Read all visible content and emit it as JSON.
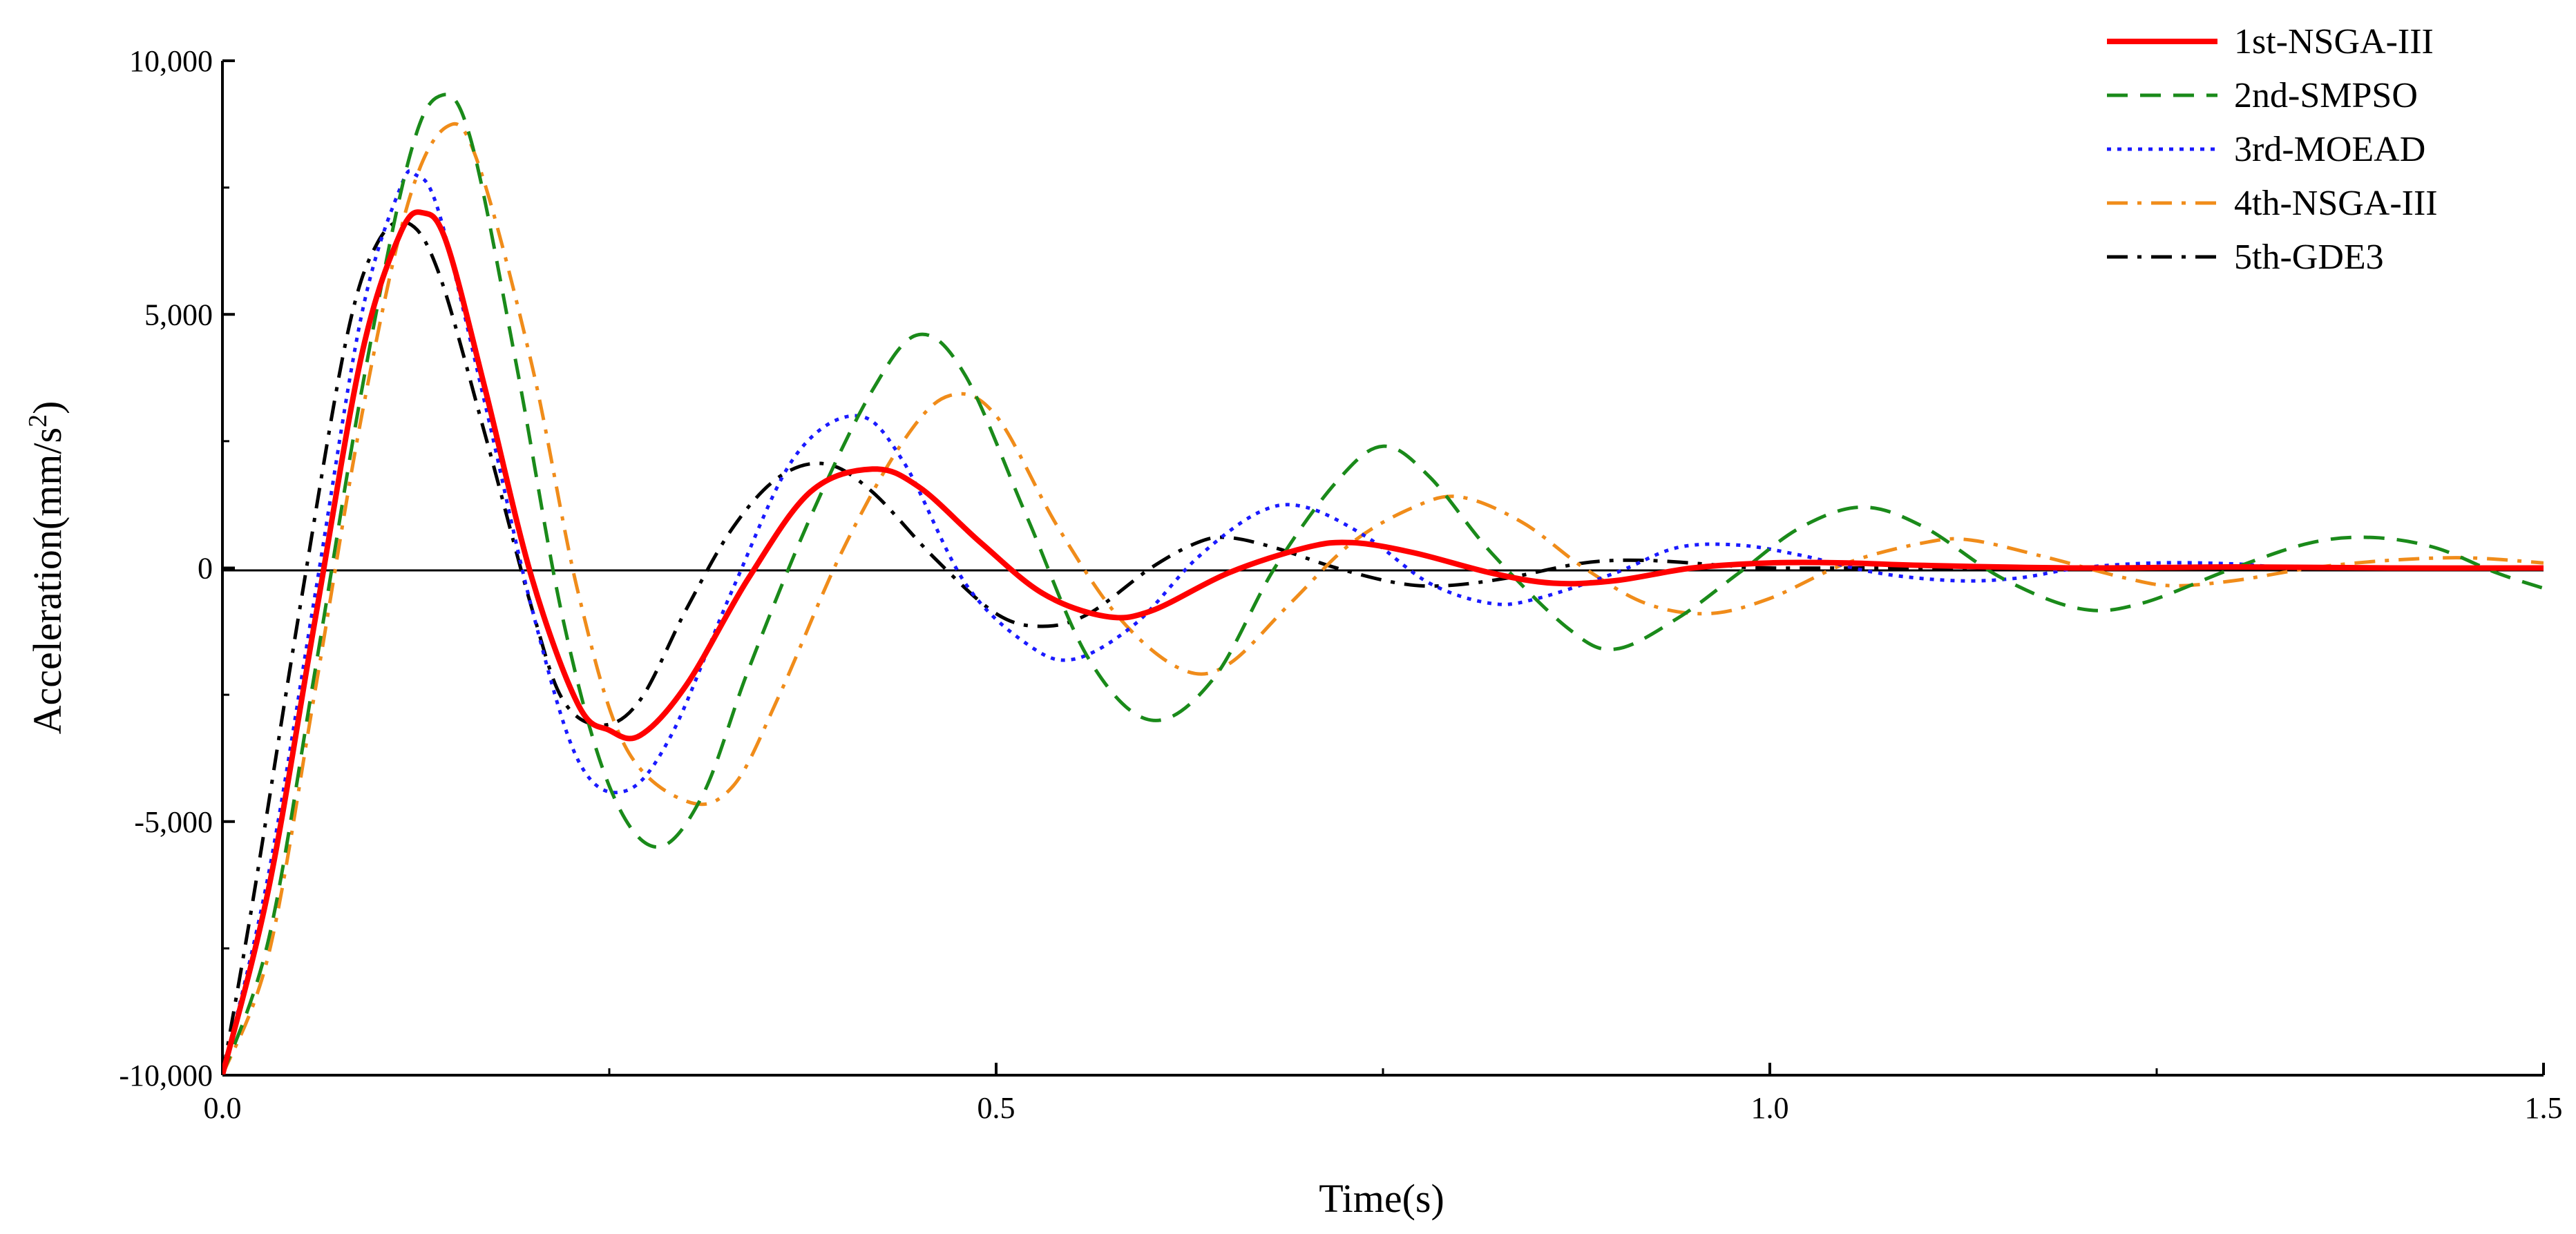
{
  "chart_data": {
    "type": "line",
    "title": "",
    "xlabel": "Time(s)",
    "ylabel": "Acceleration(mm/s",
    "ylabel_sup": "2",
    "ylabel_close": ")",
    "xlim": [
      0,
      1.5
    ],
    "ylim": [
      -10000,
      10000
    ],
    "x_ticks": [
      0.0,
      0.5,
      1.0,
      1.5
    ],
    "x_tick_labels": [
      "0.0",
      "0.5",
      "1.0",
      "1.5"
    ],
    "y_ticks": [
      -10000,
      -5000,
      0,
      5000,
      10000
    ],
    "y_tick_labels": [
      "-10,000",
      "-5,000",
      "0",
      "5,000",
      "10,000"
    ],
    "grid": false,
    "legend_position": "top-right",
    "series": [
      {
        "name": "1st-NSGA-III",
        "color": "#ff0000",
        "style": "solid",
        "points": [
          [
            0,
            -10000
          ],
          [
            0.03,
            -6300
          ],
          [
            0.06,
            -1000
          ],
          [
            0.09,
            4200
          ],
          [
            0.115,
            6600
          ],
          [
            0.13,
            7000
          ],
          [
            0.145,
            6400
          ],
          [
            0.17,
            3500
          ],
          [
            0.2,
            -200
          ],
          [
            0.23,
            -2700
          ],
          [
            0.25,
            -3200
          ],
          [
            0.27,
            -3300
          ],
          [
            0.3,
            -2300
          ],
          [
            0.34,
            -200
          ],
          [
            0.38,
            1500
          ],
          [
            0.42,
            1950
          ],
          [
            0.45,
            1600
          ],
          [
            0.49,
            500
          ],
          [
            0.53,
            -500
          ],
          [
            0.57,
            -950
          ],
          [
            0.6,
            -850
          ],
          [
            0.65,
            -100
          ],
          [
            0.7,
            400
          ],
          [
            0.73,
            500
          ],
          [
            0.77,
            300
          ],
          [
            0.82,
            -100
          ],
          [
            0.86,
            -300
          ],
          [
            0.9,
            -250
          ],
          [
            0.95,
            0
          ],
          [
            1.0,
            100
          ],
          [
            1.05,
            100
          ],
          [
            1.1,
            50
          ],
          [
            1.2,
            0
          ],
          [
            1.3,
            20
          ],
          [
            1.4,
            0
          ],
          [
            1.5,
            0
          ]
        ]
      },
      {
        "name": "2nd-SMPSO",
        "color": "#1a8a1a",
        "style": "dashed",
        "points": [
          [
            0,
            -10000
          ],
          [
            0.03,
            -7300
          ],
          [
            0.06,
            -2000
          ],
          [
            0.09,
            3500
          ],
          [
            0.12,
            8000
          ],
          [
            0.14,
            9300
          ],
          [
            0.16,
            8500
          ],
          [
            0.19,
            4000
          ],
          [
            0.22,
            -1000
          ],
          [
            0.25,
            -4300
          ],
          [
            0.28,
            -5500
          ],
          [
            0.31,
            -4500
          ],
          [
            0.34,
            -2000
          ],
          [
            0.38,
            1000
          ],
          [
            0.42,
            3500
          ],
          [
            0.45,
            4600
          ],
          [
            0.48,
            3800
          ],
          [
            0.52,
            1000
          ],
          [
            0.56,
            -1800
          ],
          [
            0.6,
            -3000
          ],
          [
            0.64,
            -2200
          ],
          [
            0.68,
            0
          ],
          [
            0.72,
            1700
          ],
          [
            0.75,
            2400
          ],
          [
            0.78,
            1800
          ],
          [
            0.82,
            300
          ],
          [
            0.87,
            -1200
          ],
          [
            0.9,
            -1600
          ],
          [
            0.94,
            -1000
          ],
          [
            0.98,
            -100
          ],
          [
            1.02,
            800
          ],
          [
            1.06,
            1200
          ],
          [
            1.1,
            800
          ],
          [
            1.15,
            -200
          ],
          [
            1.2,
            -800
          ],
          [
            1.24,
            -700
          ],
          [
            1.3,
            0
          ],
          [
            1.35,
            500
          ],
          [
            1.39,
            600
          ],
          [
            1.43,
            400
          ],
          [
            1.47,
            -100
          ],
          [
            1.5,
            -400
          ]
        ]
      },
      {
        "name": "3rd-MOEAD",
        "color": "#1a1aff",
        "style": "dotted",
        "points": [
          [
            0,
            -10000
          ],
          [
            0.03,
            -6000
          ],
          [
            0.06,
            -500
          ],
          [
            0.09,
            5000
          ],
          [
            0.115,
            7500
          ],
          [
            0.125,
            7750
          ],
          [
            0.14,
            7000
          ],
          [
            0.17,
            3200
          ],
          [
            0.2,
            -800
          ],
          [
            0.23,
            -3800
          ],
          [
            0.26,
            -4400
          ],
          [
            0.29,
            -3300
          ],
          [
            0.33,
            -400
          ],
          [
            0.37,
            2200
          ],
          [
            0.41,
            3000
          ],
          [
            0.44,
            2100
          ],
          [
            0.48,
            -300
          ],
          [
            0.52,
            -1500
          ],
          [
            0.55,
            -1800
          ],
          [
            0.59,
            -1100
          ],
          [
            0.63,
            200
          ],
          [
            0.67,
            1100
          ],
          [
            0.7,
            1200
          ],
          [
            0.74,
            600
          ],
          [
            0.78,
            -300
          ],
          [
            0.82,
            -700
          ],
          [
            0.85,
            -600
          ],
          [
            0.9,
            -100
          ],
          [
            0.94,
            400
          ],
          [
            0.98,
            450
          ],
          [
            1.02,
            250
          ],
          [
            1.07,
            -100
          ],
          [
            1.12,
            -250
          ],
          [
            1.16,
            -200
          ],
          [
            1.2,
            0
          ],
          [
            1.25,
            100
          ],
          [
            1.3,
            80
          ],
          [
            1.35,
            0
          ],
          [
            1.5,
            0
          ]
        ]
      },
      {
        "name": "4th-NSGA-III",
        "color": "#f08c1a",
        "style": "dashdot",
        "points": [
          [
            0,
            -10000
          ],
          [
            0.03,
            -7600
          ],
          [
            0.06,
            -2400
          ],
          [
            0.09,
            3000
          ],
          [
            0.12,
            7200
          ],
          [
            0.145,
            8700
          ],
          [
            0.165,
            8000
          ],
          [
            0.2,
            4000
          ],
          [
            0.23,
            -500
          ],
          [
            0.26,
            -3500
          ],
          [
            0.3,
            -4600
          ],
          [
            0.33,
            -4300
          ],
          [
            0.36,
            -2500
          ],
          [
            0.4,
            300
          ],
          [
            0.44,
            2500
          ],
          [
            0.47,
            3400
          ],
          [
            0.5,
            3000
          ],
          [
            0.54,
            800
          ],
          [
            0.58,
            -1000
          ],
          [
            0.62,
            -2000
          ],
          [
            0.65,
            -1900
          ],
          [
            0.69,
            -700
          ],
          [
            0.73,
            500
          ],
          [
            0.77,
            1200
          ],
          [
            0.8,
            1400
          ],
          [
            0.84,
            900
          ],
          [
            0.88,
            0
          ],
          [
            0.92,
            -700
          ],
          [
            0.96,
            -900
          ],
          [
            1.0,
            -600
          ],
          [
            1.05,
            100
          ],
          [
            1.1,
            500
          ],
          [
            1.13,
            550
          ],
          [
            1.18,
            200
          ],
          [
            1.23,
            -200
          ],
          [
            1.26,
            -350
          ],
          [
            1.3,
            -250
          ],
          [
            1.35,
            0
          ],
          [
            1.4,
            150
          ],
          [
            1.45,
            200
          ],
          [
            1.5,
            100
          ]
        ]
      },
      {
        "name": "5th-GDE3",
        "color": "#000000",
        "style": "dashdot",
        "points": [
          [
            0,
            -10000
          ],
          [
            0.02,
            -6500
          ],
          [
            0.05,
            -800
          ],
          [
            0.08,
            4500
          ],
          [
            0.1,
            6400
          ],
          [
            0.12,
            6800
          ],
          [
            0.14,
            5800
          ],
          [
            0.17,
            2600
          ],
          [
            0.2,
            -800
          ],
          [
            0.22,
            -2600
          ],
          [
            0.245,
            -3100
          ],
          [
            0.27,
            -2600
          ],
          [
            0.3,
            -800
          ],
          [
            0.33,
            800
          ],
          [
            0.36,
            1800
          ],
          [
            0.39,
            2050
          ],
          [
            0.42,
            1500
          ],
          [
            0.46,
            200
          ],
          [
            0.5,
            -900
          ],
          [
            0.53,
            -1150
          ],
          [
            0.56,
            -900
          ],
          [
            0.6,
            0
          ],
          [
            0.63,
            500
          ],
          [
            0.65,
            600
          ],
          [
            0.68,
            400
          ],
          [
            0.72,
            0
          ],
          [
            0.76,
            -300
          ],
          [
            0.79,
            -350
          ],
          [
            0.83,
            -200
          ],
          [
            0.88,
            100
          ],
          [
            0.92,
            150
          ],
          [
            0.97,
            50
          ],
          [
            1.0,
            0
          ],
          [
            1.1,
            0
          ],
          [
            1.5,
            0
          ]
        ]
      }
    ]
  }
}
